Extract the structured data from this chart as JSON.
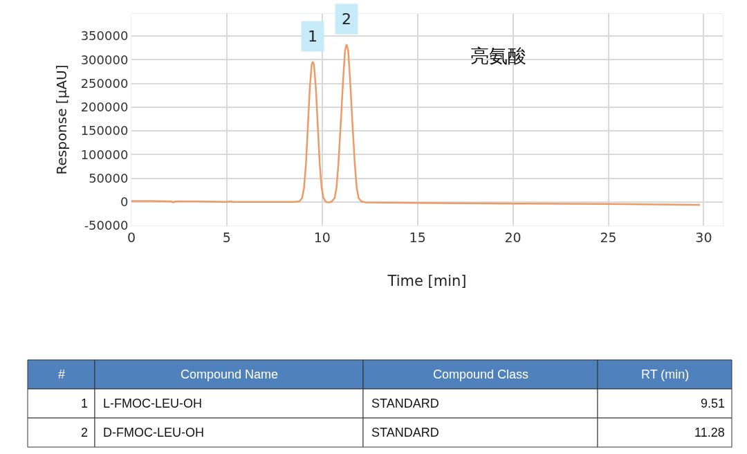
{
  "chart_data": {
    "type": "line",
    "title": "亮氨酸",
    "xlabel": "Time [min]",
    "ylabel": "Response [µAU]",
    "x": [
      0,
      1,
      2.1,
      2.2,
      2.3,
      3.5,
      5,
      5.2,
      5.35,
      5.5,
      7,
      8.5,
      8.8,
      8.95,
      9.05,
      9.15,
      9.25,
      9.35,
      9.45,
      9.51,
      9.57,
      9.67,
      9.77,
      9.87,
      9.97,
      10.07,
      10.2,
      10.35,
      10.5,
      10.65,
      10.75,
      10.85,
      10.98,
      11.1,
      11.2,
      11.28,
      11.36,
      11.46,
      11.58,
      11.71,
      11.81,
      11.91,
      12.05,
      12.3,
      15,
      20,
      25,
      29.8
    ],
    "series": [
      {
        "color": "#ed9a64",
        "values": [
          2000,
          2000,
          1000,
          -1000,
          1000,
          1000,
          0,
          1000,
          0,
          0,
          0,
          0,
          1000,
          8000,
          30000,
          80000,
          160000,
          240000,
          290000,
          296000,
          290000,
          240000,
          160000,
          80000,
          30000,
          8000,
          0,
          -1000,
          1000,
          8000,
          30000,
          80000,
          170000,
          260000,
          320000,
          332500,
          320000,
          260000,
          170000,
          80000,
          30000,
          8000,
          1000,
          -1000,
          -2000,
          -3500,
          -4500,
          -6000
        ]
      }
    ],
    "xlim": [
      0,
      31
    ],
    "xticks": [
      0,
      5,
      10,
      15,
      20,
      25,
      30
    ],
    "ylim": [
      -50000,
      397000
    ],
    "yticks": [
      -50000,
      0,
      50000,
      100000,
      150000,
      200000,
      250000,
      300000,
      350000
    ],
    "grid": true,
    "marker": "none",
    "line_style": "solid",
    "annotations": [
      {
        "text": "1",
        "x": 9.51,
        "y": 296000
      },
      {
        "text": "2",
        "x": 11.28,
        "y": 332500
      },
      "#",
      "Compound Name",
      "Compound Class",
      "RT (min)",
      "1",
      "L-FMOC-LEU-OH",
      "STANDARD",
      "9.51",
      "2",
      "D-FMOC-LEU-OH",
      "STANDARD",
      "11.28"
    ]
  }
}
